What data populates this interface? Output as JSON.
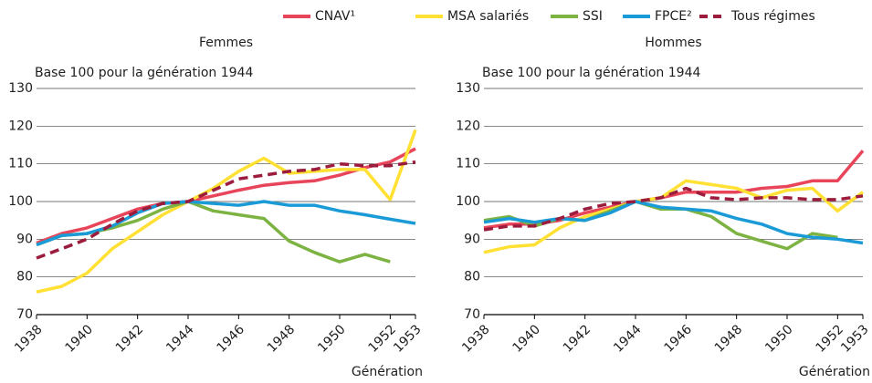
{
  "chart_data": [
    {
      "type": "line",
      "subtitle": "Femmes",
      "ylabel": "Base 100 pour la génération 1944",
      "xlabel": "Génération",
      "x": [
        1938,
        1939,
        1940,
        1941,
        1942,
        1943,
        1944,
        1945,
        1946,
        1947,
        1948,
        1949,
        1950,
        1951,
        1952,
        1953
      ],
      "xlim": [
        1938,
        1953
      ],
      "xticks": [
        1938,
        1940,
        1942,
        1944,
        1946,
        1948,
        1950,
        1952,
        1953
      ],
      "ylim": [
        70,
        130
      ],
      "yticks": [
        70,
        80,
        90,
        100,
        110,
        120,
        130
      ],
      "grid": true,
      "series": [
        {
          "name": "CNAV¹",
          "color": "#e8445a",
          "values": [
            89,
            91.5,
            93,
            95.5,
            98,
            99.5,
            100,
            101.5,
            103,
            104.3,
            105,
            105.5,
            107,
            109,
            110.5,
            114
          ]
        },
        {
          "name": "MSA salariés",
          "color": "#ffe033",
          "values": [
            76,
            77.5,
            81,
            87.5,
            92,
            96.5,
            100,
            103.5,
            108,
            111.5,
            107.5,
            108,
            108.5,
            108.5,
            100.5,
            119
          ]
        },
        {
          "name": "SSI",
          "color": "#7cb342",
          "values": [
            88.5,
            91,
            91.5,
            93,
            95,
            98,
            100,
            97.5,
            96.5,
            95.5,
            89.5,
            86.5,
            84,
            86,
            84,
            null
          ]
        },
        {
          "name": "FPCE²",
          "color": "#1a9bd7",
          "values": [
            88.5,
            91,
            91.5,
            93.5,
            97,
            99.5,
            100,
            99.5,
            99,
            100,
            99,
            99,
            97.5,
            96.5,
            95.3,
            94.2
          ]
        },
        {
          "name": "Tous régimes",
          "color": "#9b1c3c",
          "dashed": true,
          "values": [
            85,
            87.5,
            90,
            94,
            97.5,
            99.5,
            100,
            103,
            106,
            107,
            108,
            108.5,
            110,
            109.5,
            109.5,
            110.5
          ]
        }
      ]
    },
    {
      "type": "line",
      "subtitle": "Hommes",
      "ylabel": "Base 100 pour la génération 1944",
      "xlabel": "Génération",
      "x": [
        1938,
        1939,
        1940,
        1941,
        1942,
        1943,
        1944,
        1945,
        1946,
        1947,
        1948,
        1949,
        1950,
        1951,
        1952,
        1953
      ],
      "xlim": [
        1938,
        1953
      ],
      "xticks": [
        1938,
        1940,
        1942,
        1944,
        1946,
        1948,
        1950,
        1952,
        1953
      ],
      "ylim": [
        70,
        130
      ],
      "yticks": [
        70,
        80,
        90,
        100,
        110,
        120,
        130
      ],
      "grid": true,
      "series": [
        {
          "values": [
            93,
            94,
            94,
            95,
            97,
            98.5,
            100,
            101,
            102.5,
            102.5,
            102.5,
            103.5,
            104,
            105.5,
            105.5,
            113.5
          ]
        },
        {
          "values": [
            86.5,
            88,
            88.5,
            93,
            96,
            98,
            100,
            101,
            105.5,
            104.5,
            103.5,
            101,
            103,
            103.5,
            97.5,
            102.5
          ]
        },
        {
          "values": [
            95,
            96,
            93.5,
            95.5,
            95,
            97.5,
            100,
            98,
            98,
            96,
            91.5,
            89.5,
            87.5,
            91.5,
            90.5,
            null
          ]
        },
        {
          "values": [
            94.5,
            95.5,
            94.5,
            95.5,
            95,
            97,
            100,
            98.5,
            98,
            97.5,
            95.5,
            94,
            91.5,
            90.5,
            90,
            89
          ]
        },
        {
          "values": [
            92.5,
            93.5,
            93.5,
            95.5,
            98,
            99.5,
            100,
            101,
            103.5,
            101,
            100.5,
            101,
            101,
            100.5,
            100.5,
            101.5
          ]
        }
      ]
    }
  ]
}
